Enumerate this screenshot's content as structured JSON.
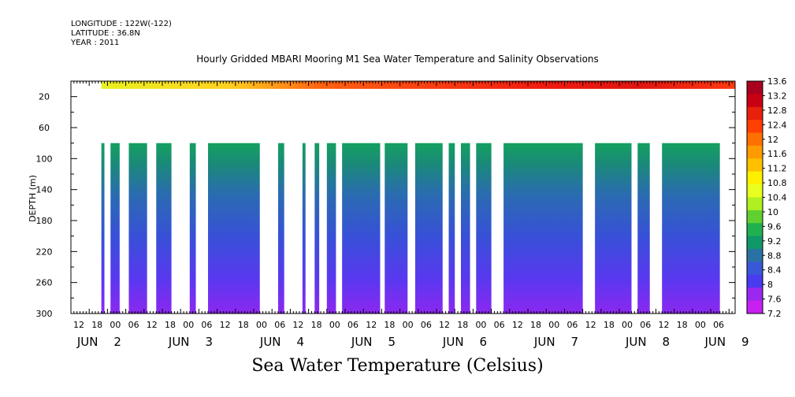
{
  "header": {
    "longitude": "LONGITUDE : 122W(-122)",
    "latitude": "LATITUDE : 36.8N",
    "year": "YEAR : 2011"
  },
  "chart_data": {
    "type": "heatmap",
    "title": "Hourly Gridded MBARI Mooring M1 Sea Water Temperature and Salinity Observations",
    "xlabel": "Sea Water Temperature (Celsius)",
    "ylabel": "DEPTH (m)",
    "ylim": [
      300,
      0
    ],
    "y_ticks": [
      20,
      60,
      100,
      140,
      180,
      220,
      260,
      300
    ],
    "x_range_hours": [
      0,
      218
    ],
    "x_hour_labels": [
      "12",
      "18",
      "00",
      "06",
      "12",
      "18",
      "00",
      "06",
      "12",
      "18",
      "00",
      "06",
      "12",
      "18",
      "00",
      "06",
      "12",
      "18",
      "00",
      "06",
      "12",
      "18",
      "00",
      "06",
      "12",
      "18",
      "00",
      "06",
      "12",
      "18",
      "00",
      "06",
      "12",
      "18",
      "00",
      "06"
    ],
    "x_day_labels": [
      {
        "label": "JUN",
        "num": "2",
        "hour": 6
      },
      {
        "label": "JUN",
        "num": "3",
        "hour": 36
      },
      {
        "label": "JUN",
        "num": "4",
        "hour": 66
      },
      {
        "label": "JUN",
        "num": "5",
        "hour": 96
      },
      {
        "label": "JUN",
        "num": "6",
        "hour": 126
      },
      {
        "label": "JUN",
        "num": "7",
        "hour": 156
      },
      {
        "label": "JUN",
        "num": "8",
        "hour": 186
      },
      {
        "label": "JUN",
        "num": "9",
        "hour": 212
      }
    ],
    "surface_layer": {
      "depth_range": [
        0,
        10
      ],
      "x_start_hour": 10,
      "x_end_hour": 218,
      "temp_start": 11.0,
      "temp_end": 12.8
    },
    "deep_layer": {
      "depth_range": [
        80,
        300
      ],
      "temp_top": 9.0,
      "temp_bottom": 7.4,
      "segments_hours": [
        [
          10,
          11
        ],
        [
          13,
          16
        ],
        [
          19,
          25
        ],
        [
          28,
          33
        ],
        [
          39,
          41
        ],
        [
          45,
          62
        ],
        [
          68,
          70
        ],
        [
          76,
          77
        ],
        [
          80,
          81.5
        ],
        [
          84,
          87
        ],
        [
          89,
          101.5
        ],
        [
          103,
          110.5
        ],
        [
          113,
          122
        ],
        [
          124,
          126
        ],
        [
          128,
          131
        ],
        [
          133,
          138
        ],
        [
          142,
          168
        ],
        [
          172,
          184
        ],
        [
          186,
          190
        ],
        [
          194,
          213
        ]
      ]
    },
    "colorbar": {
      "levels": [
        "13.6",
        "13.2",
        "12.8",
        "12.4",
        "12",
        "11.6",
        "11.2",
        "10.8",
        "10.4",
        "10",
        "9.6",
        "9.2",
        "8.8",
        "8.4",
        "8",
        "7.6",
        "7.2"
      ],
      "colors": [
        "#a8001e",
        "#c80014",
        "#e8200c",
        "#ff4000",
        "#ff7000",
        "#ff9a00",
        "#ffc000",
        "#fff000",
        "#e8ff20",
        "#b0f020",
        "#60d030",
        "#20b050",
        "#109868",
        "#2a72a4",
        "#3858d8",
        "#4a3af0",
        "#9a28f0",
        "#c820f0"
      ]
    }
  }
}
